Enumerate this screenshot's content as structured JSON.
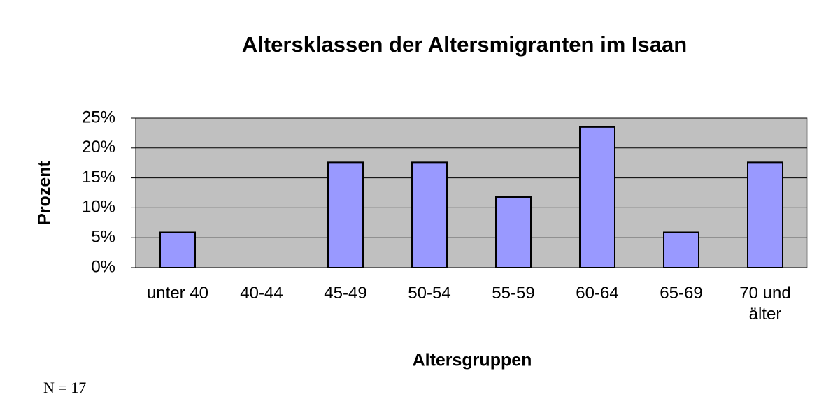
{
  "chart_data": {
    "type": "bar",
    "title": "Altersklassen der Altersmigranten im Isaan",
    "xlabel": "Altersgruppen",
    "ylabel": "Prozent",
    "annotation": "N = 17",
    "categories": [
      "unter 40",
      "40-44",
      "45-49",
      "50-54",
      "55-59",
      "60-64",
      "65-69",
      "70 und älter"
    ],
    "values": [
      5.9,
      0,
      17.6,
      17.6,
      11.8,
      23.5,
      5.9,
      17.6
    ],
    "color": "#9999ff",
    "plot_background": "#c0c0c0",
    "ylim": [
      0,
      25
    ],
    "yticks": [
      {
        "value": 0,
        "label": "0%"
      },
      {
        "value": 5,
        "label": "5%"
      },
      {
        "value": 10,
        "label": "10%"
      },
      {
        "value": 15,
        "label": "15%"
      },
      {
        "value": 20,
        "label": "20%"
      },
      {
        "value": 25,
        "label": "25%"
      }
    ],
    "grid": true
  }
}
